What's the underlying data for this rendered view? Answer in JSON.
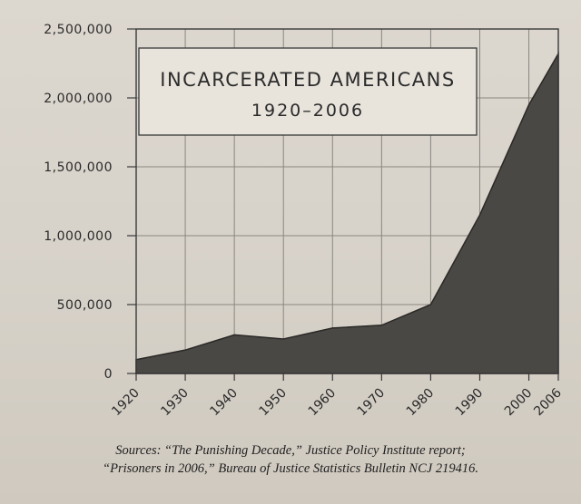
{
  "chart_data": {
    "type": "area",
    "title": "INCARCERATED AMERICANS",
    "subtitle": "1920–2006",
    "x": [
      1920,
      1930,
      1940,
      1950,
      1960,
      1970,
      1980,
      1990,
      2000,
      2006
    ],
    "y": [
      100000,
      170000,
      280000,
      250000,
      330000,
      350000,
      500000,
      1150000,
      1950000,
      2320000
    ],
    "xticks": [
      "1920",
      "1930",
      "1940",
      "1950",
      "1960",
      "1970",
      "1980",
      "1990",
      "2000",
      "2006"
    ],
    "yticks": [
      "0",
      "500,000",
      "1,000,000",
      "1,500,000",
      "2,000,000",
      "2,500,000"
    ],
    "ytick_values": [
      0,
      500000,
      1000000,
      1500000,
      2000000,
      2500000
    ],
    "ylim": [
      0,
      2500000
    ],
    "xlim": [
      1920,
      2006
    ],
    "grid": true,
    "fill_color": "#4a4845",
    "sources_line1": "Sources: “The Punishing Decade,” Justice Policy Institute report;",
    "sources_line2": "“Prisoners in 2006,” Bureau of Justice Statistics Bulletin NCJ 219416."
  }
}
